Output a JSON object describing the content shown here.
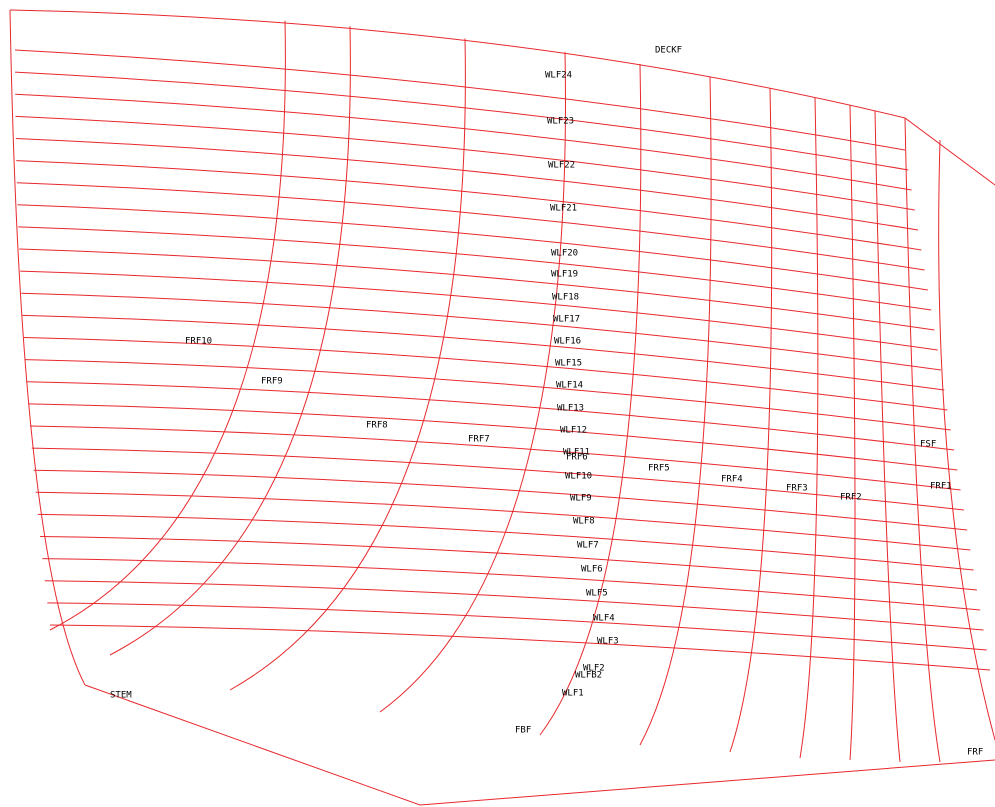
{
  "labels": [
    "DECKF",
    "WLF24",
    "WLF23",
    "WLF22",
    "WLF21",
    "WLF20",
    "WLF19",
    "WLF18",
    "WLF17",
    "WLF16",
    "WLF15",
    "WLF14",
    "WLF13",
    "WLF12",
    "WLF11",
    "FRF6",
    "WLF10",
    "WLF9",
    "WLF8",
    "WLF7",
    "WLF6",
    "WLF5",
    "WLF4",
    "WLF3",
    "WLF2",
    "WLFB2",
    "WLF1",
    "FRF10",
    "FRF9",
    "FRF8",
    "FRF7",
    "FRF5",
    "FRF4",
    "FRF3",
    "FRF2",
    "FRF1",
    "FSF",
    "STEM",
    "FBF",
    "FRF"
  ]
}
